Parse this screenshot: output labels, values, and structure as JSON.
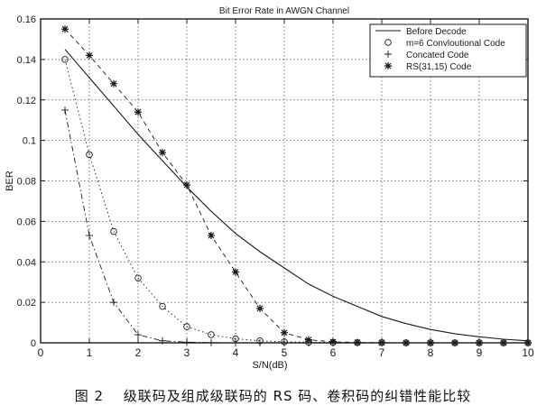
{
  "chart_data": {
    "type": "line",
    "title": "Bit Error Rate in AWGN Channel",
    "xlabel": "S/N(dB)",
    "ylabel": "BER",
    "xlim": [
      0,
      10
    ],
    "ylim": [
      0,
      0.16
    ],
    "x_ticks": [
      "0",
      "1",
      "2",
      "3",
      "4",
      "5",
      "6",
      "7",
      "8",
      "9",
      "10"
    ],
    "y_ticks": [
      "0",
      "0.02",
      "0.04",
      "0.06",
      "0.08",
      "0.1",
      "0.12",
      "0.14",
      "0.16"
    ],
    "grid": true,
    "legend_position": "top-right",
    "series": [
      {
        "name": "Before Decode",
        "marker": "none",
        "line": "solid",
        "x": [
          0.5,
          1,
          1.5,
          2,
          2.5,
          3,
          3.5,
          4,
          4.5,
          5,
          5.5,
          6,
          6.5,
          7,
          7.5,
          8,
          8.5,
          9,
          9.5,
          10
        ],
        "y": [
          0.145,
          0.131,
          0.117,
          0.103,
          0.09,
          0.077,
          0.065,
          0.054,
          0.045,
          0.037,
          0.029,
          0.023,
          0.018,
          0.013,
          0.0095,
          0.0066,
          0.0045,
          0.003,
          0.0018,
          0.001
        ]
      },
      {
        "name": "m=6 Convloutional Code",
        "marker": "circle",
        "line": "dotted",
        "x": [
          0.5,
          1,
          1.5,
          2,
          2.5,
          3,
          3.5,
          4,
          4.5,
          5,
          5.5,
          6,
          6.5,
          7,
          7.5,
          8,
          8.5,
          9,
          9.5,
          10
        ],
        "y": [
          0.14,
          0.093,
          0.055,
          0.032,
          0.018,
          0.008,
          0.004,
          0.002,
          0.001,
          0.0005,
          0.0003,
          0.0002,
          0.0001,
          0.0001,
          0.0,
          0.0,
          0.0,
          0.0,
          0.0,
          0.0
        ]
      },
      {
        "name": "Concated Code",
        "marker": "plus",
        "line": "dashdot",
        "x": [
          0.5,
          1,
          1.5,
          2,
          2.5,
          3,
          3.5,
          4,
          4.5,
          5,
          5.5,
          6,
          6.5,
          7,
          7.5,
          8,
          8.5,
          9,
          9.5,
          10
        ],
        "y": [
          0.115,
          0.053,
          0.02,
          0.004,
          0.001,
          0.0003,
          0.0001,
          0.0,
          0.0,
          0.0,
          0.0,
          0.0,
          0.0,
          0.0,
          0.0,
          0.0,
          0.0,
          0.0,
          0.0,
          0.0
        ]
      },
      {
        "name": "RS(31,15) Code",
        "marker": "star",
        "line": "dashed",
        "x": [
          0.5,
          1,
          1.5,
          2,
          2.5,
          3,
          3.5,
          4,
          4.5,
          5,
          5.5,
          6,
          6.5,
          7,
          7.5,
          8,
          8.5,
          9,
          9.5,
          10
        ],
        "y": [
          0.155,
          0.142,
          0.128,
          0.114,
          0.094,
          0.078,
          0.053,
          0.035,
          0.017,
          0.005,
          0.0015,
          0.0005,
          0.0002,
          0.0001,
          0.0,
          0.0,
          0.0,
          0.0,
          0.0,
          0.0
        ]
      }
    ]
  },
  "caption": "图 2　 级联码及组成级联码的 RS 码、卷积码的纠错性能比较",
  "colors": {
    "ink": "#1a1a1a",
    "grid": "#555555",
    "background": "#ffffff"
  }
}
